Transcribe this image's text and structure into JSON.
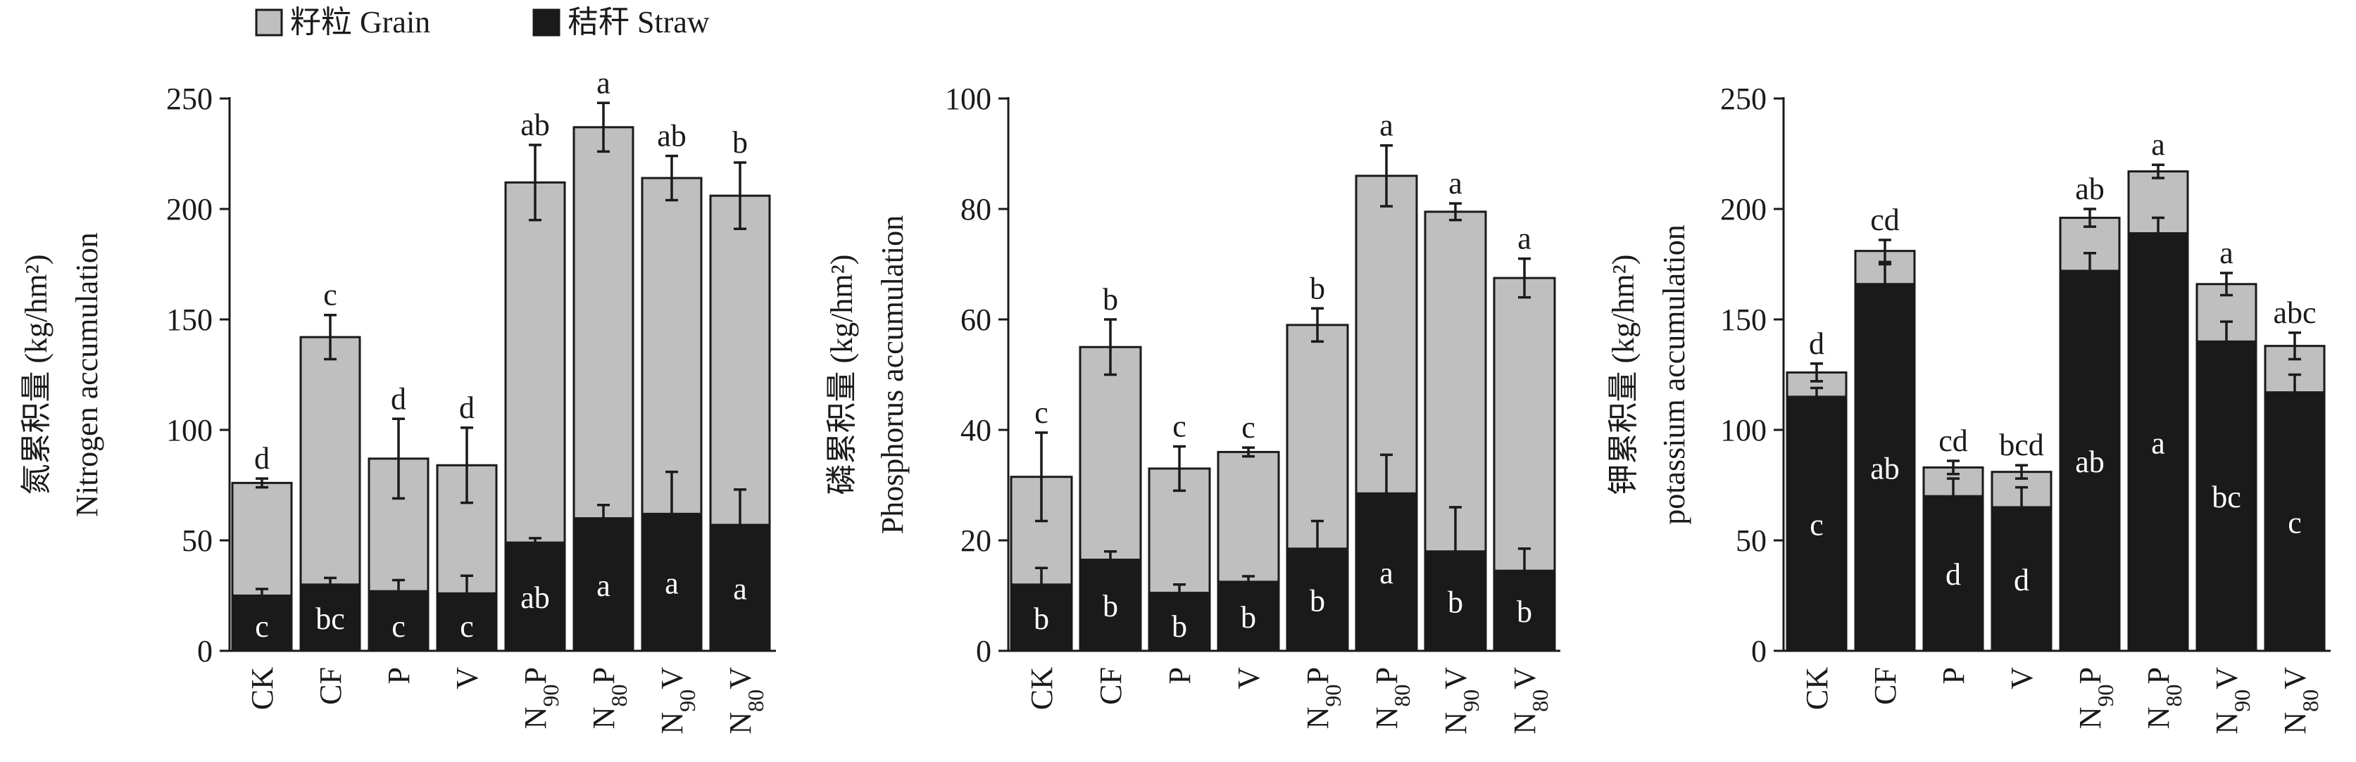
{
  "legend": {
    "items": [
      {
        "label": "籽粒 Grain",
        "color": "#bfbfbf"
      },
      {
        "label": "秸秆 Straw",
        "color": "#1a1a1a"
      }
    ]
  },
  "chart_data": [
    {
      "type": "bar",
      "stacked": true,
      "ylabel_cn": "氮累积量 (kg/hm²)",
      "ylabel_en": "Nitrogen accumulation",
      "ylim": [
        0,
        250
      ],
      "yticks": [
        "0",
        "50",
        "100",
        "150",
        "200",
        "250"
      ],
      "categories": [
        "CK",
        "CF",
        "P",
        "V",
        "N90P",
        "N80P",
        "N90V",
        "N80V"
      ],
      "series": [
        {
          "name": "秸秆 Straw",
          "values": [
            25,
            30,
            27,
            26,
            49,
            60,
            62,
            57
          ],
          "errors": [
            3,
            3,
            5,
            8,
            2,
            6,
            19,
            16
          ],
          "letters": [
            "c",
            "bc",
            "c",
            "c",
            "ab",
            "a",
            "a",
            "a"
          ]
        },
        {
          "name": "籽粒 Grain",
          "values": [
            51,
            112,
            60,
            58,
            163,
            177,
            152,
            149
          ],
          "errors": [
            2,
            10,
            18,
            17,
            17,
            11,
            10,
            15
          ],
          "letters": [
            "d",
            "c",
            "d",
            "d",
            "ab",
            "a",
            "ab",
            "b"
          ]
        }
      ]
    },
    {
      "type": "bar",
      "stacked": true,
      "ylabel_cn": "磷累积量 (kg/hm²)",
      "ylabel_en": "Phosphorus accumulation",
      "ylim": [
        0,
        100
      ],
      "yticks": [
        "0",
        "20",
        "40",
        "60",
        "80",
        "100"
      ],
      "categories": [
        "CK",
        "CF",
        "P",
        "V",
        "N90P",
        "N80P",
        "N90V",
        "N80V"
      ],
      "series": [
        {
          "name": "秸秆 Straw",
          "values": [
            12,
            16.5,
            10.5,
            12.5,
            18.5,
            28.5,
            18,
            14.5
          ],
          "errors": [
            3,
            1.5,
            1.5,
            1,
            5,
            7,
            8,
            4
          ],
          "letters": [
            "b",
            "b",
            "b",
            "b",
            "b",
            "a",
            "b",
            "b"
          ]
        },
        {
          "name": "籽粒 Grain",
          "values": [
            19.5,
            38.5,
            22.5,
            23.5,
            40.5,
            57.5,
            61.5,
            53
          ],
          "errors": [
            8,
            5,
            4,
            0.8,
            3,
            5.5,
            1.5,
            3.5
          ],
          "letters": [
            "c",
            "b",
            "c",
            "c",
            "b",
            "a",
            "a",
            "a"
          ]
        }
      ]
    },
    {
      "type": "bar",
      "stacked": true,
      "ylabel_cn": "钾累积量 (kg/hm²)",
      "ylabel_en": "potassium accumulation",
      "ylim": [
        0,
        250
      ],
      "yticks": [
        "0",
        "50",
        "100",
        "150",
        "200",
        "250"
      ],
      "categories": [
        "CK",
        "CF",
        "P",
        "V",
        "N90P",
        "N80P",
        "N90V",
        "N80V"
      ],
      "series": [
        {
          "name": "秸秆 Straw",
          "values": [
            115,
            166,
            70,
            65,
            172,
            189,
            140,
            117
          ],
          "errors": [
            4,
            9,
            8,
            9,
            8,
            7,
            9,
            8
          ],
          "letters": [
            "c",
            "ab",
            "d",
            "d",
            "ab",
            "a",
            "bc",
            "c"
          ]
        },
        {
          "name": "籽粒 Grain",
          "values": [
            11,
            15,
            13,
            16,
            24,
            28,
            26,
            21
          ],
          "errors": [
            4,
            5,
            3,
            3,
            4,
            3,
            5,
            6
          ],
          "letters": [
            "d",
            "cd",
            "cd",
            "bcd",
            "ab",
            "a",
            "a",
            "abc"
          ]
        }
      ]
    }
  ]
}
